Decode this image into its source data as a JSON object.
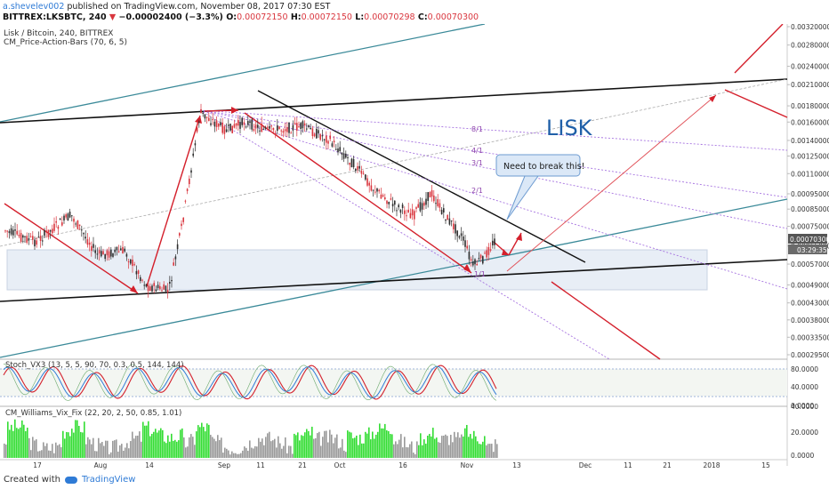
{
  "header": {
    "user": "a.shevelev002",
    "published": "published on TradingView.com, November 08, 2017 07:30 EST",
    "symbol": "BITTREX:LKSBTC, 240",
    "change_symbol": "▼",
    "change": "−0.00002400 (−3.3%)",
    "o_label": "O:",
    "o": "0.00072150",
    "h_label": "H:",
    "h": "0.00072150",
    "l_label": "L:",
    "l": "0.00070298",
    "c_label": "C:",
    "c": "0.00070300"
  },
  "legend": {
    "symbol_line": "Lisk / Bitcoin, 240, BITTREX",
    "indicator": "CM_Price-Action-Bars (70, 6, 5)"
  },
  "annotations": {
    "lisk": "LISK",
    "callout": "Need to break this!",
    "fib": [
      "8/1",
      "4/1",
      "3/1",
      "2/1",
      "1/1"
    ]
  },
  "price_axis": {
    "ticks": [
      "0.00320000",
      "0.00280000",
      "0.00240000",
      "0.00210000",
      "0.00180000",
      "0.00160000",
      "0.00140000",
      "0.00125000",
      "0.00110000",
      "0.00095000",
      "0.00085000",
      "0.00075000",
      "0.00065000",
      "0.00057000",
      "0.00049000",
      "0.00043000",
      "0.00038000",
      "0.00033500",
      "0.00029500"
    ],
    "last_price": "0.00070300",
    "countdown": "03:29:35"
  },
  "stoch": {
    "label": "Stoch_VX3 (13, 5, 5, 90, 70, 0.3, 0.5, 144, 144)",
    "ticks": [
      "80.0000",
      "40.0000",
      "0.0000"
    ]
  },
  "vix": {
    "label": "CM_Williams_Vix_Fix (22, 20, 2, 50, 0.85, 1.01)",
    "ticks": [
      "40.0000",
      "20.0000",
      "0.0000"
    ]
  },
  "time_axis": [
    "17",
    "Aug",
    "14",
    "Sep",
    "11",
    "21",
    "Oct",
    "16",
    "Nov",
    "13",
    "Dec",
    "11",
    "21",
    "2018",
    "15"
  ],
  "footer": {
    "created_with": "Created with",
    "brand": "TradingView"
  },
  "colors": {
    "up": "#2e2e2e",
    "down": "#d9363e",
    "accent": "#2f7bd6",
    "trend_teal": "#3b8a99",
    "fan": "#9b59d9",
    "vix_green": "#33dd33",
    "vix_gray": "#999999"
  },
  "chart_data": {
    "type": "candlestick",
    "title": "Lisk / Bitcoin, 240, BITTREX",
    "y_scale": "log",
    "ylim": [
      0.00025,
      0.0033
    ],
    "x": [
      "Jul 17",
      "Aug",
      "Aug 14",
      "Sep",
      "Sep 11",
      "Sep 21",
      "Oct",
      "Oct 16",
      "Nov",
      "Nov 8"
    ],
    "close": [
      0.00068,
      0.00066,
      0.00053,
      0.00175,
      0.0016,
      0.00155,
      0.0012,
      0.00095,
      0.00058,
      0.0007
    ],
    "last_close": 0.000703
  }
}
